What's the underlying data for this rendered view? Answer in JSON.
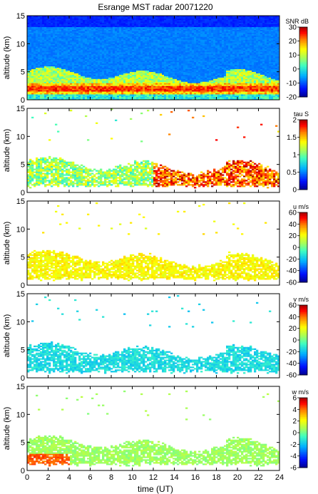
{
  "figure": {
    "title": "Esrange MST radar 20071220",
    "xlabel": "time (UT)"
  },
  "chart_data": [
    {
      "type": "heatmap",
      "panel": "snr",
      "ylabel": "altitude (km)",
      "xlim": [
        0,
        24
      ],
      "ylim": [
        0,
        15
      ],
      "x_ticks": [
        0,
        2,
        4,
        6,
        8,
        10,
        12,
        14,
        16,
        18,
        20,
        22,
        24
      ],
      "y_ticks": [
        0,
        5,
        10,
        15
      ],
      "colorbar": {
        "label": "SNR dB",
        "min": -20,
        "max": 30,
        "ticks": [
          30,
          20,
          10,
          0,
          -10,
          -20
        ]
      }
    },
    {
      "type": "heatmap",
      "panel": "tau",
      "ylabel": "altitude (km)",
      "xlim": [
        0,
        24
      ],
      "ylim": [
        0,
        15
      ],
      "x_ticks": [
        0,
        2,
        4,
        6,
        8,
        10,
        12,
        14,
        16,
        18,
        20,
        22,
        24
      ],
      "y_ticks": [
        0,
        5,
        10,
        15
      ],
      "colorbar": {
        "label": "tau S",
        "min": 0,
        "max": 2,
        "ticks": [
          2,
          1.5,
          1,
          0.5,
          0
        ]
      }
    },
    {
      "type": "heatmap",
      "panel": "u",
      "ylabel": "altitude (km)",
      "xlim": [
        0,
        24
      ],
      "ylim": [
        0,
        15
      ],
      "x_ticks": [
        0,
        2,
        4,
        6,
        8,
        10,
        12,
        14,
        16,
        18,
        20,
        22,
        24
      ],
      "y_ticks": [
        0,
        5,
        10,
        15
      ],
      "colorbar": {
        "label": "u m/s",
        "min": -60,
        "max": 60,
        "ticks": [
          60,
          40,
          20,
          0,
          -20,
          -40,
          -60
        ]
      }
    },
    {
      "type": "heatmap",
      "panel": "v",
      "ylabel": "altitude (km)",
      "xlim": [
        0,
        24
      ],
      "ylim": [
        0,
        15
      ],
      "x_ticks": [
        0,
        2,
        4,
        6,
        8,
        10,
        12,
        14,
        16,
        18,
        20,
        22,
        24
      ],
      "y_ticks": [
        0,
        5,
        10,
        15
      ],
      "colorbar": {
        "label": "v m/s",
        "min": -60,
        "max": 60,
        "ticks": [
          60,
          40,
          20,
          0,
          -20,
          -40,
          -60
        ]
      }
    },
    {
      "type": "heatmap",
      "panel": "w",
      "ylabel": "altitude (km)",
      "xlim": [
        0,
        24
      ],
      "ylim": [
        0,
        15
      ],
      "x_ticks": [
        0,
        2,
        4,
        6,
        8,
        10,
        12,
        14,
        16,
        18,
        20,
        22,
        24
      ],
      "y_ticks": [
        0,
        5,
        10,
        15
      ],
      "colorbar": {
        "label": "w m/s",
        "min": -6,
        "max": 6,
        "ticks": [
          6,
          4,
          2,
          0,
          -2,
          -4,
          -6
        ]
      }
    }
  ]
}
